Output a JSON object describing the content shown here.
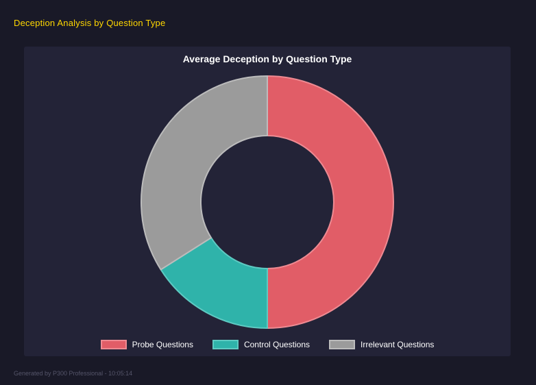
{
  "page": {
    "title": "Deception Analysis by Question Type",
    "footer": "Generated by P300 Professional - 10:05:14"
  },
  "chart_data": {
    "type": "pie",
    "style": "doughnut",
    "title": "Average Deception by Question Type",
    "labels": [
      "Probe Questions",
      "Control Questions",
      "Irrelevant Questions"
    ],
    "values": [
      50,
      16,
      34
    ],
    "unit": "percent",
    "colors": [
      "#e15d67",
      "#2fb3aa",
      "#9b9b9b"
    ],
    "border_colors": [
      "#ee8a92",
      "#5ecac2",
      "#bcbcbc"
    ],
    "legend_position": "bottom",
    "panel_bg": "#232337",
    "page_bg": "#191927",
    "accent_yellow": "#ffd700"
  }
}
